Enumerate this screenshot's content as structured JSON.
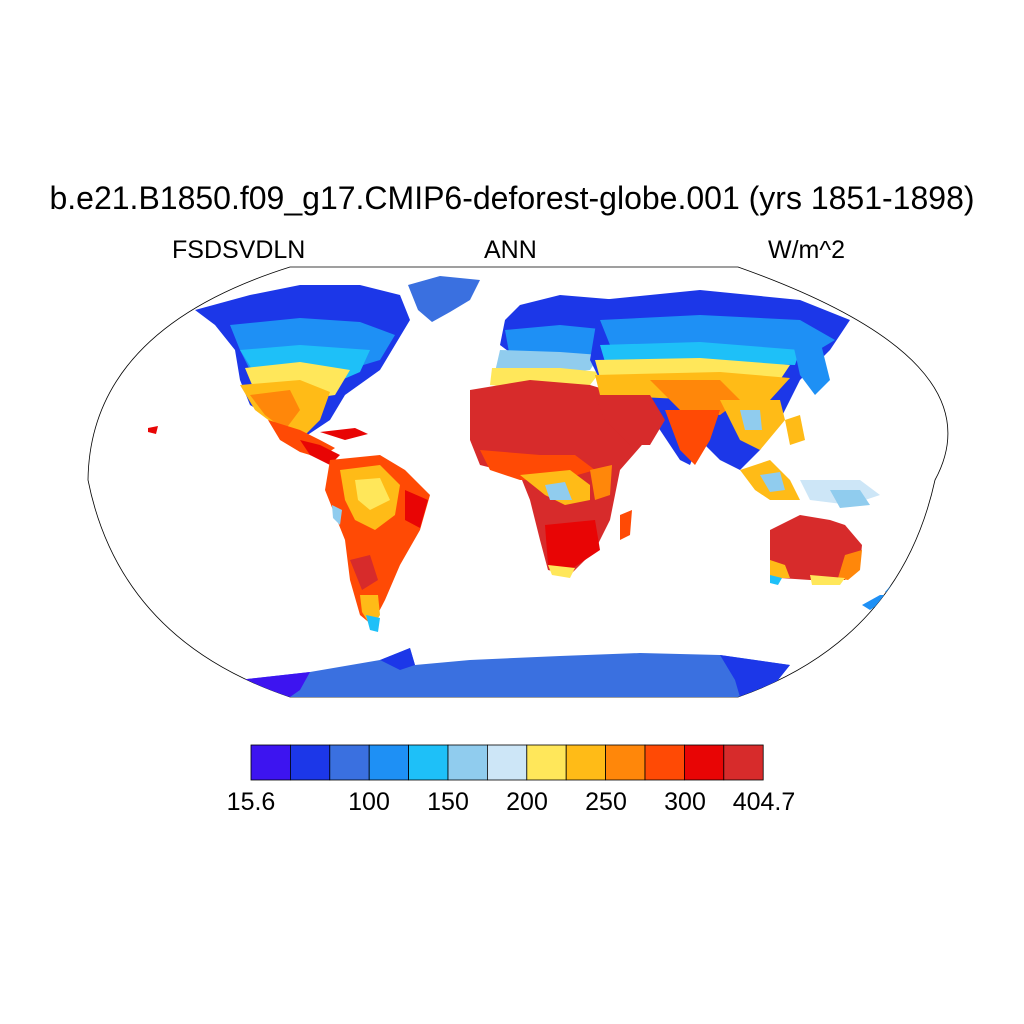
{
  "title": "b.e21.B1850.f09_g17.CMIP6-deforest-globe.001 (yrs 1851-1898)",
  "subtitles": {
    "left": "FSDSVDLN",
    "center": "ANN",
    "right": "W/m^2"
  },
  "colorbar": {
    "colors": [
      "#3d14f0",
      "#1c37e8",
      "#3a70e0",
      "#1e90f5",
      "#1ec0f8",
      "#90ccee",
      "#cde6f7",
      "#ffe75a",
      "#ffbb17",
      "#ff870a",
      "#ff4a05",
      "#e80505",
      "#d72b2b"
    ],
    "labels": [
      "15.6",
      "100",
      "150",
      "200",
      "250",
      "300",
      "404.7"
    ]
  }
}
